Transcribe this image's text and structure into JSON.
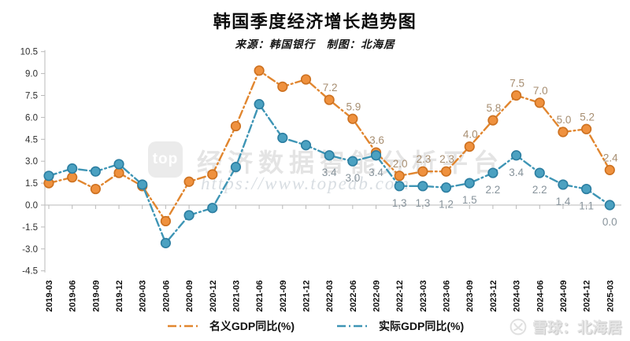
{
  "page": {
    "title": "韩国季度经济增长趋势图",
    "subtitle": "来源：韩国银行　制图：北海居"
  },
  "legend": [
    {
      "label": "名义GDP同比(%)",
      "color": "#e1862f"
    },
    {
      "label": "实际GDP同比(%)",
      "color": "#3e95b5"
    }
  ],
  "watermarks": {
    "platform_logo": "top",
    "platform_text": "经济数据智能分析平台",
    "platform_url": "https://www.topedb.com",
    "bottom_right": "雪球：北海居"
  },
  "chart_data": {
    "type": "line",
    "title": "韩国季度经济增长趋势图",
    "subtitle": "来源：韩国银行 制图：北海居",
    "categories": [
      "2019-03",
      "2019-06",
      "2019-09",
      "2019-12",
      "2020-03",
      "2020-06",
      "2020-09",
      "2020-12",
      "2021-03",
      "2021-06",
      "2021-09",
      "2021-12",
      "2022-03",
      "2022-06",
      "2022-09",
      "2022-12",
      "2023-03",
      "2023-06",
      "2023-09",
      "2023-12",
      "2024-03",
      "2024-06",
      "2024-09",
      "2024-12",
      "2025-03"
    ],
    "series": [
      {
        "name": "名义GDP同比(%)",
        "color": "#e1862f",
        "marker_fill": "#ef913e",
        "marker_stroke": "#cd7120",
        "label_color": "#a78e71",
        "values": [
          1.5,
          1.9,
          1.1,
          2.2,
          1.3,
          -1.1,
          1.6,
          2.1,
          5.4,
          9.2,
          8.1,
          8.6,
          7.2,
          5.9,
          3.6,
          2.0,
          2.3,
          2.3,
          4.0,
          5.8,
          7.5,
          7.0,
          5.0,
          5.2,
          2.4
        ]
      },
      {
        "name": "实际GDP同比(%)",
        "color": "#3e95b5",
        "marker_fill": "#4ba1c1",
        "marker_stroke": "#2c7ea1",
        "label_color": "#87939b",
        "values": [
          2.0,
          2.5,
          2.3,
          2.8,
          1.4,
          -2.6,
          -0.7,
          -0.2,
          2.6,
          6.9,
          4.6,
          4.1,
          3.4,
          3.0,
          3.4,
          1.3,
          1.3,
          1.2,
          1.5,
          2.2,
          3.4,
          2.2,
          1.4,
          1.1,
          0.0
        ]
      }
    ],
    "ylim": [
      -4.5,
      10.5
    ],
    "y_tick_step": 1.5,
    "label_start_index": 12,
    "line_style": "dash-dot",
    "grid": false,
    "legend_position": "bottom",
    "xlabel": "",
    "ylabel": ""
  }
}
